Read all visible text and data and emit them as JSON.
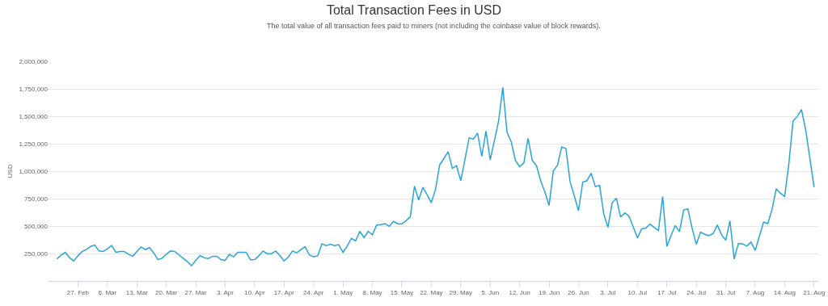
{
  "chart_data": {
    "type": "line",
    "title": "Total Transaction Fees in USD",
    "subtitle": "The total value of all transaction fees paid to miners (not including the coinbase value of block rewards).",
    "ylabel": "USD",
    "x": [
      "--02-22",
      "--02-23",
      "--02-24",
      "--02-25",
      "--02-26",
      "--02-27",
      "--02-28",
      "--03-01",
      "--03-02",
      "--03-03",
      "--03-04",
      "--03-05",
      "--03-06",
      "--03-07",
      "--03-08",
      "--03-09",
      "--03-10",
      "--03-11",
      "--03-12",
      "--03-13",
      "--03-14",
      "--03-15",
      "--03-16",
      "--03-17",
      "--03-18",
      "--03-19",
      "--03-20",
      "--03-21",
      "--03-22",
      "--03-23",
      "--03-24",
      "--03-25",
      "--03-26",
      "--03-27",
      "--03-28",
      "--03-29",
      "--03-30",
      "--03-31",
      "--04-01",
      "--04-02",
      "--04-03",
      "--04-04",
      "--04-05",
      "--04-06",
      "--04-07",
      "--04-08",
      "--04-09",
      "--04-10",
      "--04-11",
      "--04-12",
      "--04-13",
      "--04-14",
      "--04-15",
      "--04-16",
      "--04-17",
      "--04-18",
      "--04-19",
      "--04-20",
      "--04-21",
      "--04-22",
      "--04-23",
      "--04-24",
      "--04-25",
      "--04-26",
      "--04-27",
      "--04-28",
      "--04-29",
      "--04-30",
      "--05-01",
      "--05-02",
      "--05-03",
      "--05-04",
      "--05-05",
      "--05-06",
      "--05-07",
      "--05-08",
      "--05-09",
      "--05-10",
      "--05-11",
      "--05-12",
      "--05-13",
      "--05-14",
      "--05-15",
      "--05-16",
      "--05-17",
      "--05-18",
      "--05-19",
      "--05-20",
      "--05-21",
      "--05-22",
      "--05-23",
      "--05-24",
      "--05-25",
      "--05-26",
      "--05-27",
      "--05-28",
      "--05-29",
      "--05-30",
      "--05-31",
      "--06-01",
      "--06-02",
      "--06-03",
      "--06-04",
      "--06-05",
      "--06-06",
      "--06-07",
      "--06-08",
      "--06-09",
      "--06-10",
      "--06-11",
      "--06-12",
      "--06-13",
      "--06-14",
      "--06-15",
      "--06-16",
      "--06-17",
      "--06-18",
      "--06-19",
      "--06-20",
      "--06-21",
      "--06-22",
      "--06-23",
      "--06-24",
      "--06-25",
      "--06-26",
      "--06-27",
      "--06-28",
      "--06-29",
      "--06-30",
      "--07-01",
      "--07-02",
      "--07-03",
      "--07-04",
      "--07-05",
      "--07-06",
      "--07-07",
      "--07-08",
      "--07-09",
      "--07-10",
      "--07-11",
      "--07-12",
      "--07-13",
      "--07-14",
      "--07-15",
      "--07-16",
      "--07-17",
      "--07-18",
      "--07-19",
      "--07-20",
      "--07-21",
      "--07-22",
      "--07-23",
      "--07-24",
      "--07-25",
      "--07-26",
      "--07-27",
      "--07-28",
      "--07-29",
      "--07-30",
      "--07-31",
      "--08-01",
      "--08-02",
      "--08-03",
      "--08-04",
      "--08-05",
      "--08-06",
      "--08-07",
      "--08-08",
      "--08-09",
      "--08-10",
      "--08-11",
      "--08-12",
      "--08-13",
      "--08-14",
      "--08-15",
      "--08-16",
      "--08-17",
      "--08-18",
      "--08-19",
      "--08-20",
      "--08-21"
    ],
    "series": [
      {
        "color": "#2aa3d9",
        "values": [
          200000,
          237000,
          261000,
          212000,
          183000,
          229000,
          269000,
          286000,
          315000,
          327000,
          273000,
          269000,
          293000,
          322000,
          261000,
          269000,
          269000,
          244000,
          225000,
          269000,
          310000,
          286000,
          303000,
          256000,
          195000,
          207000,
          244000,
          273000,
          269000,
          237000,
          207000,
          176000,
          139000,
          188000,
          232000,
          212000,
          205000,
          225000,
          225000,
          195000,
          188000,
          242000,
          220000,
          261000,
          261000,
          261000,
          193000,
          195000,
          229000,
          273000,
          249000,
          249000,
          273000,
          232000,
          183000,
          217000,
          273000,
          256000,
          286000,
          312000,
          237000,
          220000,
          229000,
          339000,
          322000,
          334000,
          322000,
          330000,
          261000,
          317000,
          388000,
          366000,
          452000,
          395000,
          452000,
          420000,
          510000,
          513000,
          522000,
          498000,
          542000,
          522000,
          518000,
          549000,
          586000,
          864000,
          737000,
          854000,
          786000,
          713000,
          835000,
          1059000,
          1116000,
          1177000,
          1025000,
          1050000,
          913000,
          1108000,
          1304000,
          1291000,
          1347000,
          1135000,
          1365000,
          1103000,
          1279000,
          1457000,
          1762000,
          1355000,
          1267000,
          1098000,
          1042000,
          1074000,
          1299000,
          1098000,
          1050000,
          913000,
          810000,
          688000,
          1001000,
          1055000,
          1221000,
          1206000,
          903000,
          774000,
          640000,
          901000,
          913000,
          981000,
          859000,
          871000,
          610000,
          488000,
          713000,
          754000,
          583000,
          620000,
          591000,
          493000,
          391000,
          474000,
          481000,
          518000,
          488000,
          461000,
          769000,
          315000,
          413000,
          505000,
          449000,
          647000,
          657000,
          481000,
          334000,
          444000,
          425000,
          413000,
          432000,
          510000,
          420000,
          371000,
          547000,
          200000,
          342000,
          339000,
          317000,
          354000,
          278000,
          408000,
          537000,
          522000,
          652000,
          840000,
          798000,
          769000,
          1067000,
          1457000,
          1499000,
          1562000,
          1377000,
          1116000,
          854000
        ]
      }
    ],
    "xlim": [
      "--02-20",
      "--08-22"
    ],
    "xticks": [
      {
        "value": "--02-27",
        "label": "27. Feb"
      },
      {
        "value": "--03-06",
        "label": "6. Mar"
      },
      {
        "value": "--03-13",
        "label": "13. Mar"
      },
      {
        "value": "--03-20",
        "label": "20. Mar"
      },
      {
        "value": "--03-27",
        "label": "27. Mar"
      },
      {
        "value": "--04-03",
        "label": "3. Apr"
      },
      {
        "value": "--04-10",
        "label": "10. Apr"
      },
      {
        "value": "--04-17",
        "label": "17. Apr"
      },
      {
        "value": "--04-24",
        "label": "24. Apr"
      },
      {
        "value": "--05-01",
        "label": "1. May"
      },
      {
        "value": "--05-08",
        "label": "8. May"
      },
      {
        "value": "--05-15",
        "label": "15. May"
      },
      {
        "value": "--05-22",
        "label": "22. May"
      },
      {
        "value": "--05-29",
        "label": "29. May"
      },
      {
        "value": "--06-05",
        "label": "5. Jun"
      },
      {
        "value": "--06-12",
        "label": "12. Jun"
      },
      {
        "value": "--06-19",
        "label": "19. Jun"
      },
      {
        "value": "--06-26",
        "label": "26. Jun"
      },
      {
        "value": "--07-03",
        "label": "3. Jul"
      },
      {
        "value": "--07-10",
        "label": "10. Jul"
      },
      {
        "value": "--07-17",
        "label": "17. Jul"
      },
      {
        "value": "--07-24",
        "label": "24. Jul"
      },
      {
        "value": "--07-31",
        "label": "31. Jul"
      },
      {
        "value": "--08-07",
        "label": "7. Aug"
      },
      {
        "value": "--08-14",
        "label": "14. Aug"
      },
      {
        "value": "--08-21",
        "label": "21. Aug"
      }
    ],
    "ylim": [
      0,
      2000000
    ],
    "yticks": [
      {
        "value": 250000,
        "label": "250,000"
      },
      {
        "value": 500000,
        "label": "500,000"
      },
      {
        "value": 750000,
        "label": "750,000"
      },
      {
        "value": 1000000,
        "label": "1,000,000"
      },
      {
        "value": 1250000,
        "label": "1,250,000"
      },
      {
        "value": 1500000,
        "label": "1,500,000"
      },
      {
        "value": 1750000,
        "label": "1,750,000"
      },
      {
        "value": 2000000,
        "label": "2,000,000"
      }
    ],
    "grid": "y"
  }
}
